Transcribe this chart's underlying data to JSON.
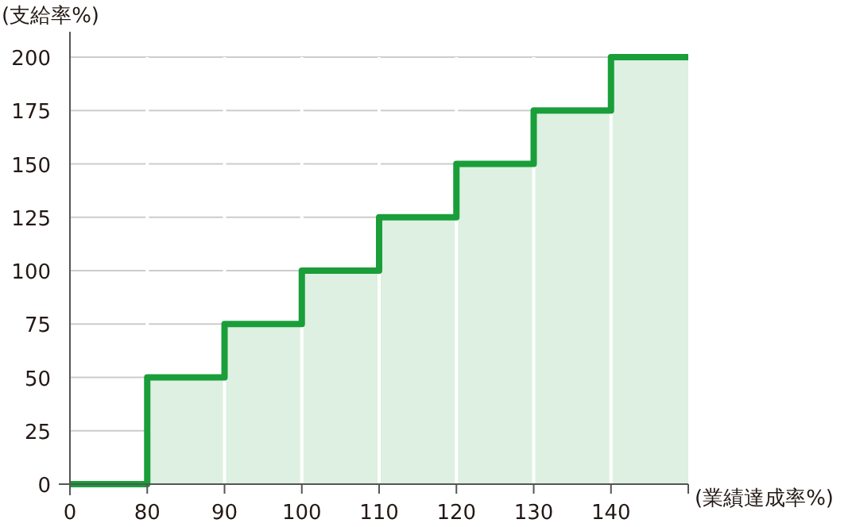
{
  "chart_data": {
    "type": "step",
    "xlabel": "(業績達成率%)",
    "ylabel": "(支給率%)",
    "categories": [
      "0",
      "80",
      "90",
      "100",
      "110",
      "120",
      "130",
      "140",
      null
    ],
    "values": [
      0,
      50,
      75,
      100,
      125,
      150,
      175,
      200,
      200
    ],
    "color": "#1a9e3a",
    "ylim": [
      0,
      200
    ],
    "yticks": [
      0,
      25,
      50,
      75,
      100,
      125,
      150,
      175,
      200
    ],
    "grid": true
  }
}
